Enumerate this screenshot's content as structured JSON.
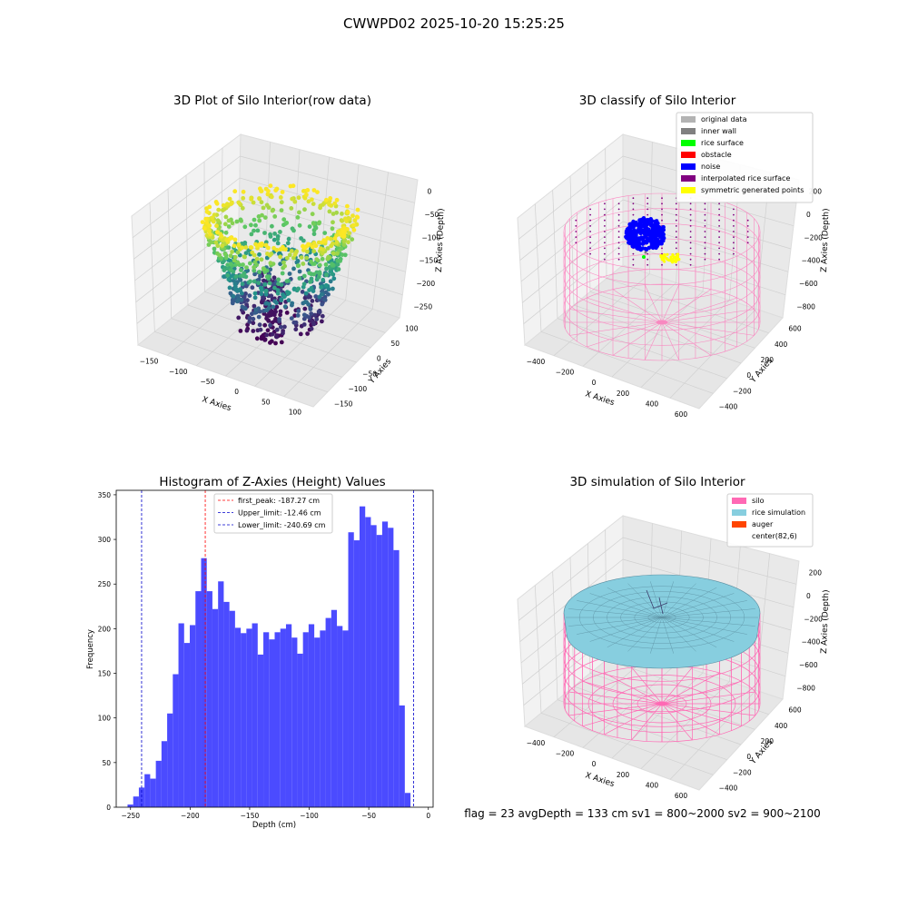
{
  "suptitle": "CWWPD02 2025-10-20 15:25:25",
  "status_line": "flag = 23   avgDepth = 133 cm  sv1 = 800~2000  sv2 = 900~2100",
  "colors": {
    "hist_bar": "#4b4bff",
    "first_peak_line": "#ff0000",
    "limit_line": "#0000cc",
    "silo_wire": "#ff69b4",
    "rice_sim": "#87cedf",
    "grid_pane": "#f2f2f2"
  },
  "chart_data": [
    {
      "type": "scatter3d",
      "title": "3D Plot of Silo Interior(row data)",
      "xlabel": "X Axies",
      "ylabel": "Y Axies",
      "zlabel": "Z Axies (Depth)",
      "xticks": [
        "−150",
        "−100",
        "−50",
        "0",
        "50",
        "100"
      ],
      "yticks": [
        "−150",
        "−100",
        "−50",
        "0",
        "50",
        "100"
      ],
      "zticks": [
        "0",
        "−50",
        "−100",
        "−150",
        "−200",
        "−250"
      ],
      "xlim": [
        -170,
        120
      ],
      "ylim": [
        -160,
        120
      ],
      "zlim": [
        -270,
        5
      ],
      "colormap": "viridis"
    },
    {
      "type": "scatter3d",
      "title": "3D classify of Silo Interior",
      "xticks": [
        "−400",
        "−200",
        "0",
        "200",
        "400",
        "600"
      ],
      "yticks": [
        "−400",
        "−200",
        "0",
        "200",
        "400",
        "600"
      ],
      "zticks": [
        "200",
        "0",
        "−200",
        "−400",
        "−600",
        "−800"
      ],
      "xlabel": "X Axies",
      "ylabel": "Y Axies",
      "zlabel": "Z Axies (Depth)",
      "legend": [
        {
          "name": "original data",
          "color": "#b3b3b3"
        },
        {
          "name": "inner wall",
          "color": "#808080"
        },
        {
          "name": "rice surface",
          "color": "#00ff00"
        },
        {
          "name": "obstacle",
          "color": "#ff0000"
        },
        {
          "name": "noise",
          "color": "#0000ff"
        },
        {
          "name": "interpolated rice surface",
          "color": "#800080"
        },
        {
          "name": "symmetric generated points",
          "color": "#ffff00"
        }
      ],
      "legend_loc": "upper right"
    },
    {
      "type": "bar",
      "title": "Histogram of Z-Axies (Height) Values",
      "xlabel": "Depth (cm)",
      "ylabel": "Frequency",
      "xlim": [
        -262,
        4
      ],
      "ylim": [
        0,
        355
      ],
      "xticks": [
        -250,
        -200,
        -150,
        -100,
        -50,
        0
      ],
      "xtick_labels": [
        "−250",
        "−200",
        "−150",
        "−100",
        "−50",
        "0"
      ],
      "yticks": [
        0,
        50,
        100,
        150,
        200,
        250,
        300,
        350
      ],
      "bin_start": -252.5,
      "bin_width": 4.75,
      "values": [
        3,
        12,
        22,
        37,
        32,
        52,
        74,
        105,
        149,
        206,
        184,
        204,
        242,
        279,
        242,
        222,
        253,
        230,
        220,
        201,
        195,
        200,
        206,
        171,
        196,
        188,
        196,
        200,
        205,
        190,
        172,
        196,
        205,
        190,
        198,
        212,
        221,
        203,
        198,
        308,
        299,
        337,
        325,
        316,
        305,
        320,
        313,
        288,
        114,
        16
      ],
      "lines": [
        {
          "name": "first_peak: -187.27 cm",
          "x": -187.27,
          "color": "#ff0000"
        },
        {
          "name": "Upper_limit: -12.46 cm",
          "x": -12.46,
          "color": "#0000cc"
        },
        {
          "name": "Lower_limit: -240.69 cm",
          "x": -240.69,
          "color": "#0000cc"
        }
      ],
      "legend_loc": "upper center"
    },
    {
      "type": "surface3d",
      "title": "3D simulation of Silo Interior",
      "xticks": [
        "−400",
        "−200",
        "0",
        "200",
        "400",
        "600"
      ],
      "yticks": [
        "−400",
        "−200",
        "0",
        "200",
        "400",
        "600"
      ],
      "zticks": [
        "200",
        "0",
        "−200",
        "−400",
        "−600",
        "−800"
      ],
      "xlabel": "X Axies",
      "ylabel": "Y Axies",
      "zlabel": "Z Axies (Depth)",
      "legend": [
        {
          "name": "silo",
          "color": "#ff69b4"
        },
        {
          "name": "rice simulation",
          "color": "#87cedf"
        },
        {
          "name": "auger",
          "color": "#ff4500"
        },
        {
          "name": "center(82,6)",
          "color": ""
        }
      ],
      "legend_loc": "upper right"
    }
  ]
}
